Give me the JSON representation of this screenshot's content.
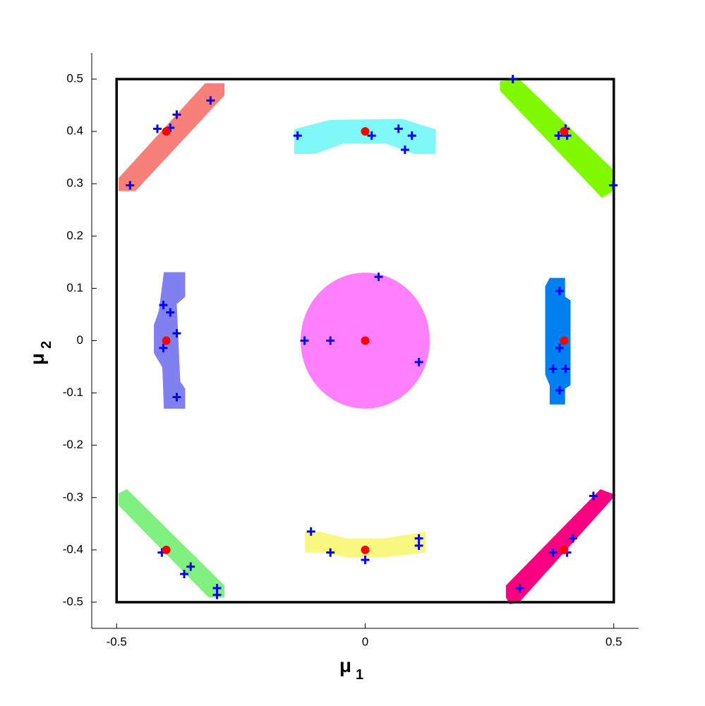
{
  "chart_data": {
    "type": "scatter",
    "xlabel": {
      "text": "μ",
      "subscript": "1"
    },
    "ylabel": {
      "text": "μ",
      "subscript": "2"
    },
    "xlim": [
      -0.55,
      0.55
    ],
    "ylim": [
      -0.55,
      0.55
    ],
    "xticks": [
      -0.5,
      0,
      0.5
    ],
    "yticks": [
      -0.5,
      -0.4,
      -0.3,
      -0.2,
      -0.1,
      0,
      0.1,
      0.2,
      0.3,
      0.4,
      0.5
    ],
    "frame": {
      "x": [
        -0.5,
        0.5
      ],
      "y": [
        -0.5,
        0.5
      ],
      "color": "#000000"
    },
    "regions": [
      {
        "color": "#f8807a",
        "x": [
          -0.496,
          -0.496,
          -0.462,
          -0.283,
          -0.283,
          -0.322
        ],
        "y": [
          0.311,
          0.286,
          0.286,
          0.469,
          0.492,
          0.492
        ]
      },
      {
        "color": "#80f8f8",
        "x": [
          -0.143,
          -0.071,
          0.075,
          0.142,
          0.142,
          0.099,
          0.04,
          -0.043,
          -0.101,
          -0.143
        ],
        "y": [
          0.404,
          0.422,
          0.424,
          0.404,
          0.357,
          0.357,
          0.377,
          0.377,
          0.357,
          0.357
        ]
      },
      {
        "color": "#80f800",
        "x": [
          0.271,
          0.31,
          0.499,
          0.499,
          0.476,
          0.271
        ],
        "y": [
          0.496,
          0.5,
          0.327,
          0.286,
          0.273,
          0.478
        ]
      },
      {
        "color": "#8080f0",
        "x": [
          -0.405,
          -0.362,
          -0.362,
          -0.379,
          -0.372,
          -0.362,
          -0.362,
          -0.405,
          -0.408,
          -0.425,
          -0.425,
          -0.415
        ],
        "y": [
          0.131,
          0.131,
          0.084,
          0.07,
          -0.078,
          -0.092,
          -0.13,
          -0.13,
          -0.051,
          -0.024,
          0.03,
          0.057
        ]
      },
      {
        "color": "#ff80ff",
        "cx": 0,
        "cy": 0,
        "r": 0.13
      },
      {
        "color": "#0080f0",
        "x": [
          0.371,
          0.402,
          0.402,
          0.413,
          0.413,
          0.402,
          0.402,
          0.371,
          0.371,
          0.362,
          0.362
        ],
        "y": [
          0.12,
          0.12,
          0.084,
          0.077,
          -0.085,
          -0.092,
          -0.122,
          -0.122,
          -0.085,
          -0.065,
          0.104
        ]
      },
      {
        "color": "#80f080",
        "x": [
          -0.496,
          -0.479,
          -0.283,
          -0.283,
          -0.315,
          -0.496
        ],
        "y": [
          -0.292,
          -0.284,
          -0.468,
          -0.491,
          -0.491,
          -0.315
        ]
      },
      {
        "color": "#f8f880",
        "x": [
          -0.121,
          -0.092,
          -0.038,
          0.04,
          0.122,
          0.122,
          0.089,
          0.04,
          -0.038,
          -0.081,
          -0.121
        ],
        "y": [
          -0.365,
          -0.365,
          -0.378,
          -0.378,
          -0.365,
          -0.405,
          -0.409,
          -0.414,
          -0.414,
          -0.405,
          -0.405
        ]
      },
      {
        "color": "#f80080",
        "x": [
          0.283,
          0.473,
          0.504,
          0.31,
          0.291,
          0.283
        ],
        "y": [
          -0.468,
          -0.284,
          -0.295,
          -0.5,
          -0.504,
          -0.491
        ]
      }
    ],
    "series": [
      {
        "color": "#0000ff",
        "marker": "plus",
        "x": [
          -0.473,
          -0.418,
          -0.392,
          -0.379,
          -0.311,
          -0.136,
          0.013,
          0.067,
          0.094,
          0.08,
          0.297,
          0.389,
          0.403,
          0.406,
          0.499,
          -0.406,
          -0.392,
          -0.379,
          -0.406,
          -0.379,
          -0.122,
          -0.07,
          0.027,
          0.108,
          0.391,
          0.391,
          0.378,
          0.403,
          0.391,
          -0.409,
          -0.351,
          -0.364,
          -0.298,
          -0.298,
          -0.109,
          -0.07,
          0,
          0.108,
          0.108,
          0.311,
          0.378,
          0.406,
          0.418,
          0.459
        ],
        "y": [
          0.297,
          0.405,
          0.407,
          0.432,
          0.459,
          0.392,
          0.392,
          0.405,
          0.392,
          0.365,
          0.5,
          0.392,
          0.405,
          0.392,
          0.297,
          0.068,
          0.054,
          0.014,
          -0.014,
          -0.108,
          0,
          0,
          0.122,
          -0.041,
          0.095,
          -0.014,
          -0.054,
          -0.054,
          -0.095,
          -0.405,
          -0.432,
          -0.446,
          -0.473,
          -0.486,
          -0.365,
          -0.405,
          -0.419,
          -0.378,
          -0.392,
          -0.473,
          -0.405,
          -0.405,
          -0.378,
          -0.297
        ]
      },
      {
        "color": "#ff0000",
        "marker": "dot",
        "x": [
          -0.4,
          0,
          0.4,
          -0.4,
          0,
          0.4,
          -0.4,
          0,
          0.4
        ],
        "y": [
          0.4,
          0.4,
          0.4,
          0,
          0,
          0,
          -0.4,
          -0.4,
          -0.4
        ]
      }
    ]
  }
}
